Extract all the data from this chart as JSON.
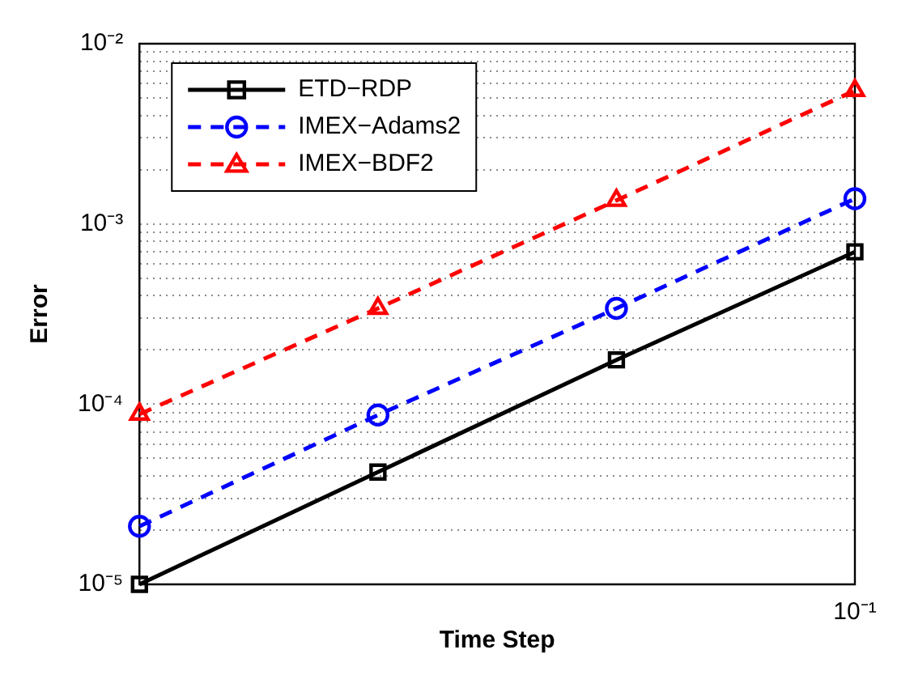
{
  "chart_data": {
    "type": "line",
    "xlabel": "Time Step",
    "ylabel": "Error",
    "categories": [
      null,
      null,
      null,
      null
    ],
    "series": [
      {
        "name": "ETD−RDP",
        "color": "#000000",
        "values": [
          1e-05,
          4.2e-05,
          0.000176,
          0.0007
        ],
        "marker": "square",
        "line_style": "solid"
      },
      {
        "name": "IMEX−Adams2",
        "color": "#0000ff",
        "values": [
          2.1e-05,
          8.7e-05,
          0.00034,
          0.00138
        ],
        "marker": "circle",
        "line_style": "dashed"
      },
      {
        "name": "IMEX−BDF2",
        "color": "#ff0000",
        "values": [
          8.8e-05,
          0.00034,
          0.00135,
          0.0055
        ],
        "marker": "triangle",
        "line_style": "dashed"
      }
    ],
    "annotations": [
      "10⁻¹"
    ],
    "log": "y",
    "ylim": [
      1e-05,
      0.01
    ],
    "yticks": [
      {
        "value": 1e-05,
        "label": "10⁻⁵"
      },
      {
        "value": 2e-05,
        "label": null
      },
      {
        "value": 3e-05,
        "label": null
      },
      {
        "value": 4e-05,
        "label": null
      },
      {
        "value": 5e-05,
        "label": null
      },
      {
        "value": 6e-05,
        "label": null
      },
      {
        "value": 7e-05,
        "label": null
      },
      {
        "value": 8e-05,
        "label": null
      },
      {
        "value": 9e-05,
        "label": null
      },
      {
        "value": 0.0001,
        "label": "10⁻⁴"
      },
      {
        "value": 0.0002,
        "label": null
      },
      {
        "value": 0.0003,
        "label": null
      },
      {
        "value": 0.0004,
        "label": null
      },
      {
        "value": 0.0005,
        "label": null
      },
      {
        "value": 0.0006,
        "label": null
      },
      {
        "value": 0.0007,
        "label": null
      },
      {
        "value": 0.0008,
        "label": null
      },
      {
        "value": 0.0009,
        "label": null
      },
      {
        "value": 0.001,
        "label": "10⁻³"
      },
      {
        "value": 0.002,
        "label": null
      },
      {
        "value": 0.003,
        "label": null
      },
      {
        "value": 0.004,
        "label": null
      },
      {
        "value": 0.005,
        "label": null
      },
      {
        "value": 0.006,
        "label": null
      },
      {
        "value": 0.007,
        "label": null
      },
      {
        "value": 0.008,
        "label": null
      },
      {
        "value": 0.009,
        "label": null
      },
      {
        "value": 0.01,
        "label": "10⁻²"
      }
    ],
    "grid": "y",
    "legend": "top left"
  }
}
